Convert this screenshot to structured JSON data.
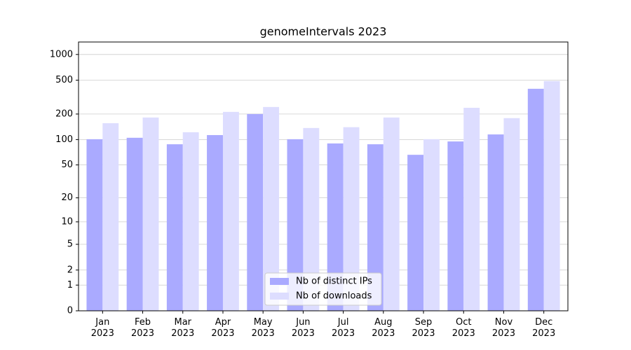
{
  "chart_data": {
    "type": "bar",
    "title": "genomeIntervals 2023",
    "categories": [
      "Jan 2023",
      "Feb 2023",
      "Mar 2023",
      "Apr 2023",
      "May 2023",
      "Jun 2023",
      "Jul 2023",
      "Aug 2023",
      "Sep 2023",
      "Oct 2023",
      "Nov 2023",
      "Dec 2023"
    ],
    "series": [
      {
        "name": "Nb of distinct IPs",
        "color": "#aaaaff",
        "values": [
          101,
          105,
          88,
          113,
          200,
          101,
          90,
          88,
          66,
          95,
          115,
          396
        ]
      },
      {
        "name": "Nb of downloads",
        "color": "#ddddff",
        "values": [
          156,
          182,
          122,
          212,
          242,
          137,
          140,
          182,
          101,
          237,
          179,
          488
        ]
      }
    ],
    "yscale": "log1p",
    "ylim": [
      0,
      1400
    ],
    "yticks": [
      0,
      1,
      2,
      5,
      10,
      20,
      50,
      100,
      200,
      500,
      1000
    ],
    "grid": true,
    "legend": "lower center"
  }
}
